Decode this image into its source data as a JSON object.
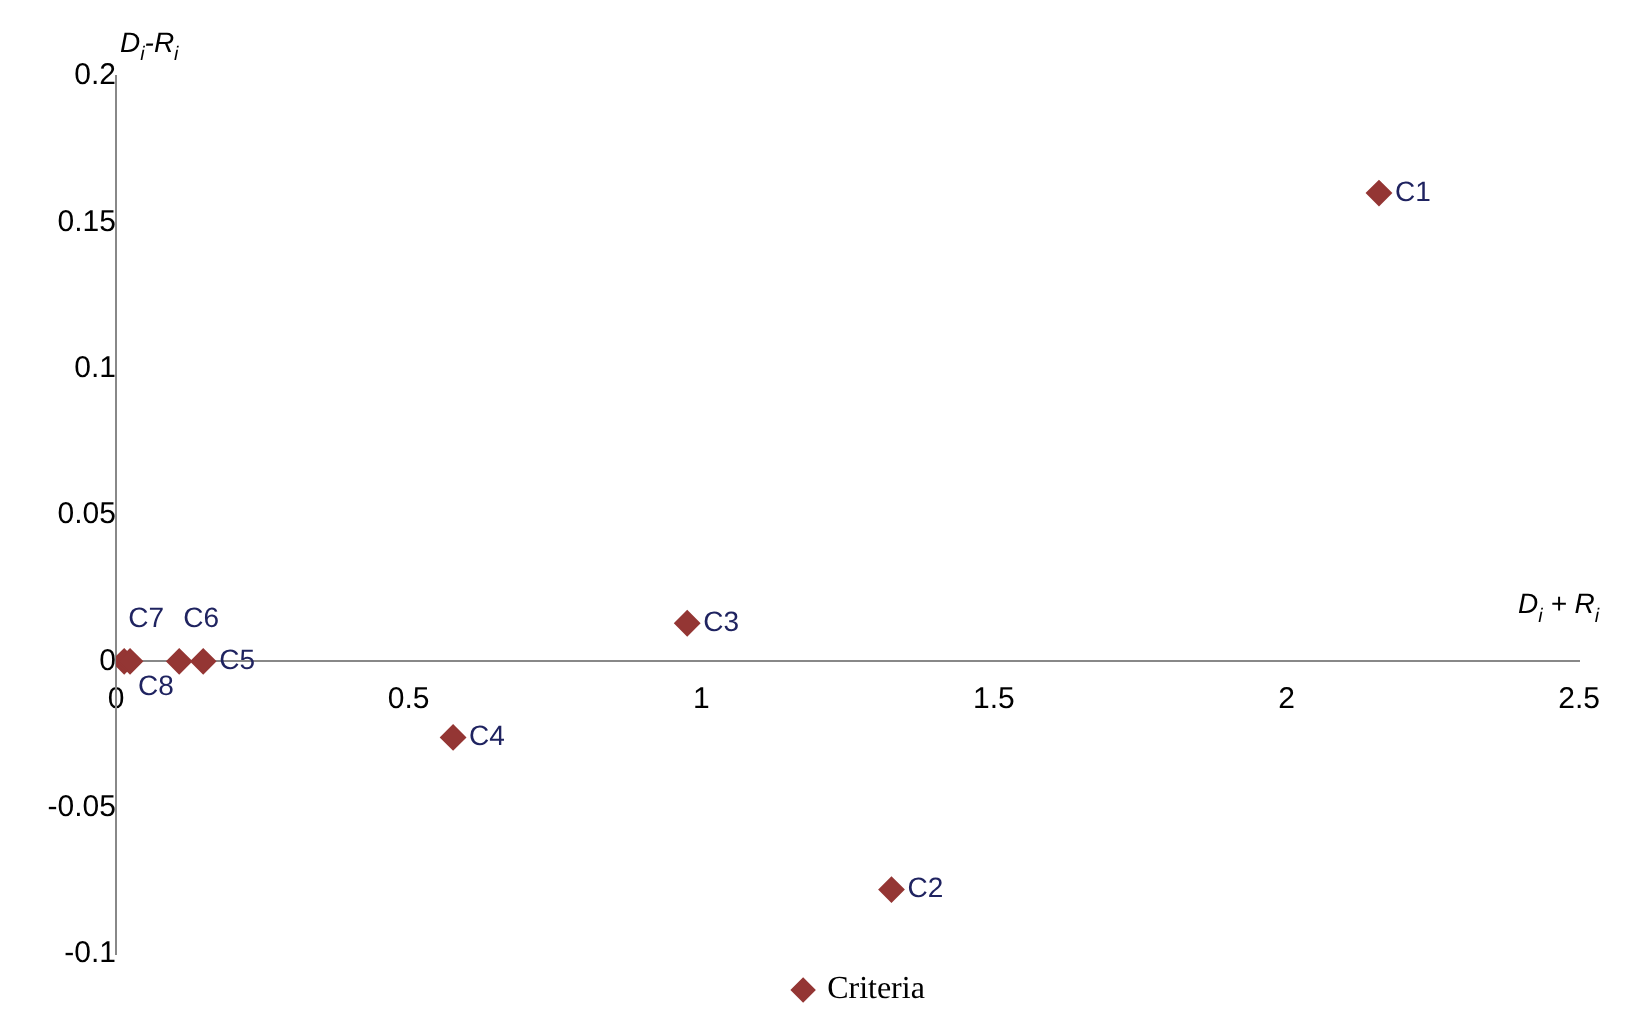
{
  "chart_data": {
    "type": "scatter",
    "xlabel": "D$_{i}$ + R$_{i}$",
    "ylabel": "D$_{i}$-R$_{i}$",
    "series": [
      {
        "name": "Criteria",
        "color": "#943634",
        "x": [
          2.158,
          1.325,
          0.976,
          0.576,
          0.149,
          0.108,
          0.014,
          0.024
        ],
        "values": [
          0.16,
          -0.078,
          0.013,
          -0.026,
          0,
          0,
          0,
          0
        ]
      }
    ],
    "annotations": [
      {
        "text": "C1",
        "x": 2.158,
        "y": 0.16
      },
      {
        "text": "C2",
        "x": 1.325,
        "y": -0.078
      },
      {
        "text": "C3",
        "x": 0.976,
        "y": 0.013
      },
      {
        "text": "C4",
        "x": 0.576,
        "y": -0.026
      },
      {
        "text": "C5",
        "x": 0.149,
        "y": 0
      },
      {
        "text": "C6",
        "x": 0.108,
        "y": 0
      },
      {
        "text": "C7",
        "x": 0.014,
        "y": 0
      },
      {
        "text": "C8",
        "x": 0.024,
        "y": 0
      }
    ],
    "xlim": [
      0,
      2.5
    ],
    "xticks": [
      0,
      0.5,
      1,
      1.5,
      2,
      2.5
    ],
    "ylim": [
      -0.1,
      0.2
    ],
    "yticks": [
      -0.1,
      -0.05,
      0,
      0.05,
      0.1,
      0.15,
      0.2
    ],
    "marker": "diamond",
    "grid": false,
    "legend": "bottom"
  }
}
